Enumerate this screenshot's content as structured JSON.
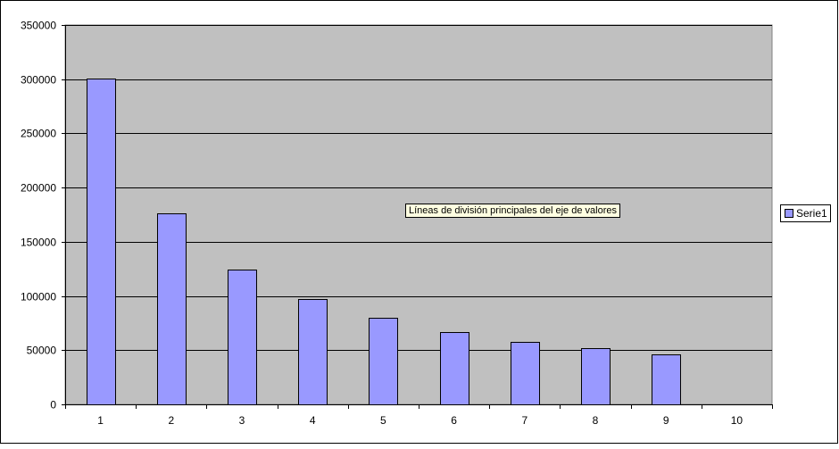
{
  "chart_data": {
    "type": "bar",
    "title": "",
    "xlabel": "",
    "ylabel": "",
    "categories": [
      "1",
      "2",
      "3",
      "4",
      "5",
      "6",
      "7",
      "8",
      "9",
      "10"
    ],
    "series": [
      {
        "name": "Serie1",
        "color": "#9999ff",
        "values": [
          300500,
          176500,
          124500,
          97000,
          79500,
          66500,
          57500,
          51500,
          46000,
          null
        ]
      }
    ],
    "ylim": [
      0,
      350000
    ],
    "yticks": [
      "0",
      "50000",
      "100000",
      "150000",
      "200000",
      "250000",
      "300000",
      "350000"
    ],
    "plot_background": "#c0c0c0",
    "grid": true,
    "legend_position": "right"
  },
  "tooltip": "Líneas de división principales del eje de valores"
}
